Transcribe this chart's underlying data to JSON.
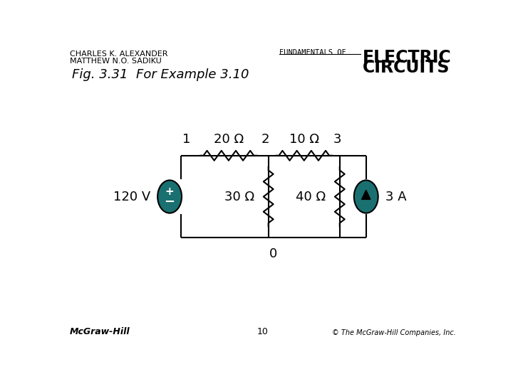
{
  "title": "Fig. 3.31  For Example 3.10",
  "header_left1": "CHARLES K. ALEXANDER",
  "header_left2": "MATTHEW N.O. SADIKU",
  "header_right1": "FUNDAMENTALS OF",
  "header_right2": "ELECTRIC",
  "header_right3": "CIRCUITS",
  "footer_left": "McGraw-Hill",
  "footer_center": "10",
  "footer_right": "© The McGraw-Hill Companies, Inc.",
  "teal_color": "#1a7070",
  "node1_label": "1",
  "node2_label": "2",
  "node3_label": "3",
  "node0_label": "0",
  "R1_label": "20 Ω",
  "R2_label": "10 Ω",
  "R3_label": "30 Ω",
  "R4_label": "40 Ω",
  "V_label": "120 V",
  "I_label": "3 A",
  "line_color": "#000000"
}
